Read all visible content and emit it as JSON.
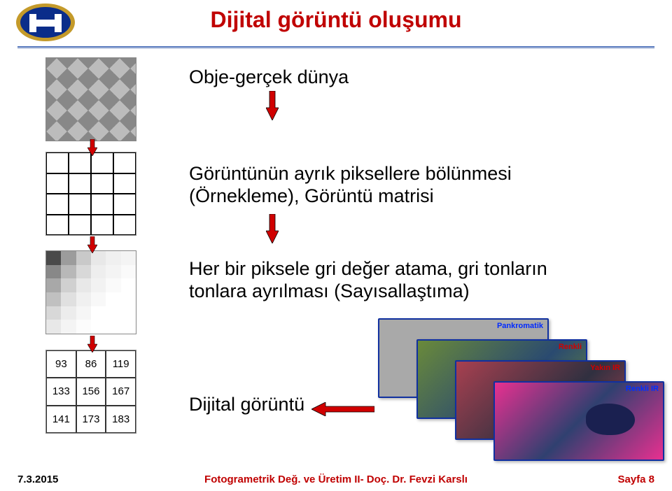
{
  "colors": {
    "title": "#c00000",
    "arrow": "#d00000",
    "arrow_stroke": "#000000",
    "rule_top": "#5a7bbf",
    "rule_bottom": "#c8d2e6",
    "sat_border": "#1030a0",
    "logo_blue": "#0a2d8a",
    "logo_gold": "#c49a2a"
  },
  "title": "Dijital görüntü oluşumu",
  "labels": {
    "obje": "Obje-gerçek dünya",
    "sample": "Görüntünün ayrık piksellere bölünmesi (Örnekleme), Görüntü matrisi",
    "quant": "Her bir piksele gri değer atama, gri tonların tonlara ayrılması (Sayısallaştıma)",
    "digital": "Dijital görüntü"
  },
  "num_table": {
    "cells": [
      "93",
      "86",
      "119",
      "133",
      "156",
      "167",
      "141",
      "173",
      "183"
    ]
  },
  "pixel_grid": {
    "shades": [
      "#4a4a4a",
      "#9c9c9c",
      "#c9c9c9",
      "#e8e8e8",
      "#f0f0f0",
      "#f4f4f4",
      "#888888",
      "#b8b8b8",
      "#d8d8d8",
      "#eeeeee",
      "#f4f4f4",
      "#fafafa",
      "#a8a8a8",
      "#d0d0d0",
      "#e8e8e8",
      "#f2f2f2",
      "#fafafa",
      "#ffffff",
      "#c0c0c0",
      "#e0e0e0",
      "#f0f0f0",
      "#f8f8f8",
      "#ffffff",
      "#ffffff",
      "#d8d8d8",
      "#ececec",
      "#f6f6f6",
      "#ffffff",
      "#ffffff",
      "#ffffff",
      "#e8e8e8",
      "#f4f4f4",
      "#fcfcfc",
      "#ffffff",
      "#ffffff",
      "#ffffff"
    ]
  },
  "satellite_labels": {
    "s1": "Pankromatik",
    "s2": "Renkli",
    "s3": "Yakın IR",
    "s4": "Renkli IR"
  },
  "footer": {
    "date": "7.3.2015",
    "center": "Fotogrametrik Değ. ve Üretim II- Doç. Dr. Fevzi Karslı",
    "page": "Sayfa 8"
  }
}
